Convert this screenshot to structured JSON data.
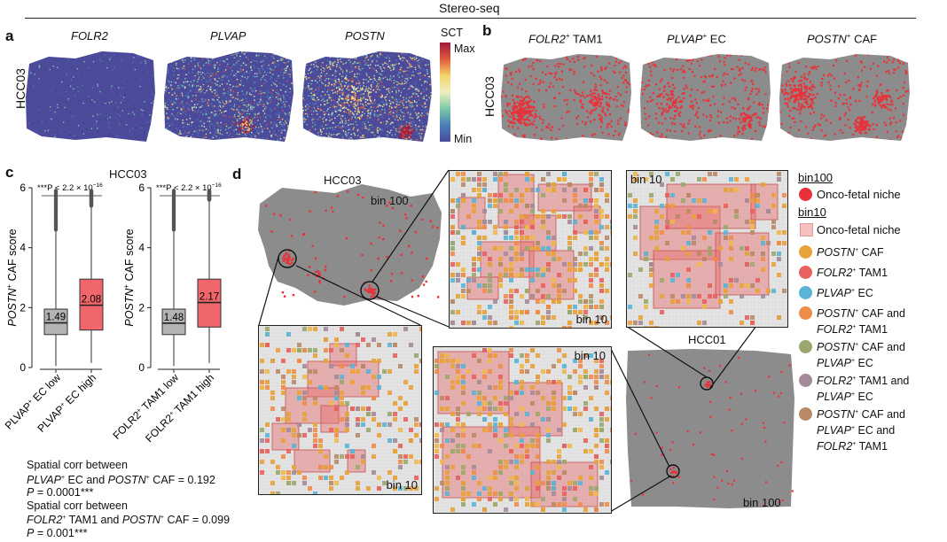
{
  "top_title": "Stereo-seq",
  "panel_a": {
    "label": "a",
    "sample": "HCC03",
    "genes": [
      "FOLR2",
      "PLVAP",
      "POSTN"
    ],
    "colorbar": {
      "title": "SCT",
      "max": "Max",
      "min": "Min"
    }
  },
  "panel_b": {
    "label": "b",
    "sample": "HCC03",
    "titles": [
      {
        "gene": "FOLR2",
        "sup": "+",
        "rest": " TAM1"
      },
      {
        "gene": "PLVAP",
        "sup": "+",
        "rest": " EC"
      },
      {
        "gene": "POSTN",
        "sup": "+",
        "rest": " CAF"
      }
    ]
  },
  "panel_c": {
    "label": "c",
    "title": "HCC03",
    "chart_data": [
      {
        "type": "box",
        "ylabel_gene": "POSTN",
        "ylabel_sup": "+",
        "ylabel_rest": " CAF score",
        "ylim": [
          0,
          6
        ],
        "yticks": [
          "0",
          "2",
          "4",
          "6"
        ],
        "pvalue": "***P < 2.2 × 10",
        "pvalue_exp": "−16",
        "groups": [
          {
            "name_gene": "PLVAP",
            "name_sup": "+",
            "name_rest": " EC low",
            "median": 1.49,
            "q1": 1.1,
            "q3": 1.95,
            "whisker_low": 0.05,
            "whisker_high": 4.6,
            "color": "#b3b3b3",
            "median_label": "1.49"
          },
          {
            "name_gene": "PLVAP",
            "name_sup": "+",
            "name_rest": " EC high",
            "median": 2.08,
            "q1": 1.25,
            "q3": 2.95,
            "whisker_low": 0.15,
            "whisker_high": 5.4,
            "color": "#f0666a",
            "median_label": "2.08"
          }
        ]
      },
      {
        "type": "box",
        "ylabel_gene": "POSTN",
        "ylabel_sup": "+",
        "ylabel_rest": " CAF score",
        "ylim": [
          0,
          6
        ],
        "yticks": [
          "0",
          "2",
          "4",
          "6"
        ],
        "pvalue": "***P < 2.2 × 10",
        "pvalue_exp": "−16",
        "groups": [
          {
            "name_gene": "FOLR2",
            "name_sup": "+",
            "name_rest": " TAM1 low",
            "median": 1.48,
            "q1": 1.1,
            "q3": 1.95,
            "whisker_low": 0.05,
            "whisker_high": 4.6,
            "color": "#b3b3b3",
            "median_label": "1.48"
          },
          {
            "name_gene": "FOLR2",
            "name_sup": "+",
            "name_rest": " TAM1 high",
            "median": 2.17,
            "q1": 1.35,
            "q3": 2.95,
            "whisker_low": 0.15,
            "whisker_high": 5.6,
            "color": "#f0666a",
            "median_label": "2.17"
          }
        ]
      }
    ],
    "corr1": {
      "line1": "Spatial corr between",
      "g1": "PLVAP",
      "t1": " EC and ",
      "g2": "POSTN",
      "t2": " CAF = 0.192",
      "p": "P",
      "pv": " = 0.0001***"
    },
    "corr2": {
      "line1": "Spatial corr between",
      "g1": "FOLR2",
      "t1": " TAM1 and ",
      "g2": "POSTN",
      "t2": " CAF = 0.099",
      "p": "P",
      "pv": " = 0.001***"
    }
  },
  "panel_d": {
    "label": "d",
    "hcc03": "HCC03",
    "hcc01": "HCC01",
    "bin100": "bin 100",
    "bin10": "bin 10",
    "legend": {
      "bin100_title": "bin100",
      "bin10_title": "bin10",
      "niche": "Onco-fetal niche",
      "niche_bin10": "Onco-fetal niche",
      "items": [
        {
          "color": "#e8a23a",
          "lines": [
            [
              "POSTN",
              "+",
              " CAF"
            ]
          ]
        },
        {
          "color": "#e8615f",
          "lines": [
            [
              "FOLR2",
              "+",
              " TAM1"
            ]
          ]
        },
        {
          "color": "#5ab4d6",
          "lines": [
            [
              "PLVAP",
              "+",
              " EC"
            ]
          ]
        },
        {
          "color": "#ee8c4a",
          "lines": [
            [
              "POSTN",
              "+",
              " CAF and"
            ],
            [
              "FOLR2",
              "+",
              " TAM1"
            ]
          ]
        },
        {
          "color": "#9aa86e",
          "lines": [
            [
              "POSTN",
              "+",
              " CAF and"
            ],
            [
              "PLVAP",
              "+",
              " EC"
            ]
          ]
        },
        {
          "color": "#a48a9a",
          "lines": [
            [
              "FOLR2",
              "+",
              " TAM1 and"
            ],
            [
              "PLVAP",
              "+",
              " EC"
            ]
          ]
        },
        {
          "color": "#b98a66",
          "lines": [
            [
              "POSTN",
              "+",
              " CAF and"
            ],
            [
              "PLVAP",
              "+",
              " EC and"
            ],
            [
              "FOLR2",
              "+",
              " TAM1"
            ]
          ]
        }
      ]
    }
  },
  "colors": {
    "tissue_grey": "#8a8a8a",
    "niche_red": "#e8323a",
    "heat_low": "#4a4a9a"
  }
}
